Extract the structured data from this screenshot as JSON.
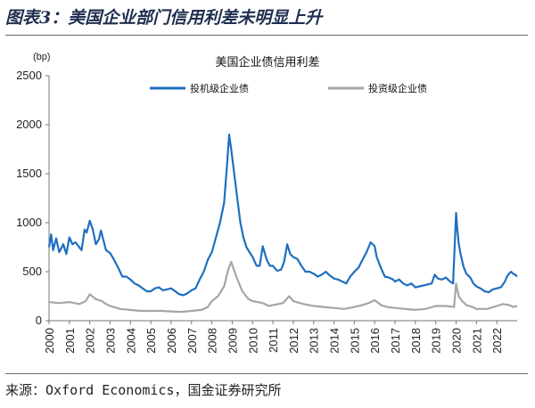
{
  "figure_title": "图表3：美国企业部门信用利差未明显上升",
  "source": "来源：Oxford Economics，国金证券研究所",
  "chart_data": {
    "type": "line",
    "title": "美国企业债信用利差",
    "unit": "(bp)",
    "xlabel": "",
    "ylabel": "",
    "ylim": [
      0,
      2500
    ],
    "yticks": [
      0,
      500,
      1000,
      1500,
      2000,
      2500
    ],
    "xlim": [
      2000,
      2023
    ],
    "xticks": [
      "2000",
      "2001",
      "2002",
      "2003",
      "2004",
      "2005",
      "2006",
      "2007",
      "2008",
      "2009",
      "2010",
      "2011",
      "2012",
      "2013",
      "2014",
      "2015",
      "2016",
      "2017",
      "2018",
      "2019",
      "2020",
      "2021",
      "2022"
    ],
    "grid": false,
    "legend_position": "top",
    "series": [
      {
        "name": "投机级企业债",
        "color": "#1f6fc0",
        "x": [
          2000.0,
          2000.1,
          2000.2,
          2000.35,
          2000.5,
          2000.7,
          2000.85,
          2001.0,
          2001.15,
          2001.3,
          2001.45,
          2001.6,
          2001.75,
          2001.85,
          2002.0,
          2002.15,
          2002.3,
          2002.45,
          2002.55,
          2002.7,
          2002.8,
          2003.0,
          2003.2,
          2003.4,
          2003.6,
          2003.8,
          2004.0,
          2004.2,
          2004.4,
          2004.6,
          2004.8,
          2005.0,
          2005.2,
          2005.4,
          2005.6,
          2005.8,
          2006.0,
          2006.2,
          2006.4,
          2006.6,
          2006.8,
          2007.0,
          2007.2,
          2007.4,
          2007.6,
          2007.8,
          2008.0,
          2008.2,
          2008.4,
          2008.6,
          2008.75,
          2008.85,
          2008.95,
          2009.1,
          2009.25,
          2009.4,
          2009.55,
          2009.7,
          2009.85,
          2010.0,
          2010.2,
          2010.35,
          2010.5,
          2010.7,
          2010.85,
          2011.0,
          2011.2,
          2011.4,
          2011.55,
          2011.7,
          2011.85,
          2012.0,
          2012.2,
          2012.4,
          2012.6,
          2012.8,
          2013.0,
          2013.2,
          2013.4,
          2013.6,
          2013.8,
          2014.0,
          2014.2,
          2014.4,
          2014.6,
          2014.8,
          2015.0,
          2015.2,
          2015.4,
          2015.6,
          2015.8,
          2016.0,
          2016.1,
          2016.3,
          2016.5,
          2016.7,
          2016.9,
          2017.0,
          2017.2,
          2017.4,
          2017.6,
          2017.8,
          2018.0,
          2018.2,
          2018.4,
          2018.6,
          2018.8,
          2018.95,
          2019.1,
          2019.3,
          2019.5,
          2019.7,
          2019.85,
          2020.0,
          2020.05,
          2020.12,
          2020.2,
          2020.35,
          2020.5,
          2020.7,
          2020.85,
          2021.0,
          2021.2,
          2021.4,
          2021.6,
          2021.8,
          2022.0,
          2022.2,
          2022.4,
          2022.5,
          2022.6,
          2022.7,
          2022.8,
          2022.9,
          2023.0
        ],
        "values": [
          750,
          880,
          720,
          840,
          700,
          780,
          680,
          850,
          780,
          800,
          760,
          720,
          930,
          900,
          1020,
          930,
          780,
          830,
          920,
          800,
          720,
          690,
          620,
          540,
          450,
          450,
          420,
          380,
          360,
          330,
          300,
          300,
          330,
          340,
          310,
          320,
          330,
          300,
          270,
          260,
          280,
          310,
          330,
          420,
          500,
          620,
          700,
          850,
          1000,
          1200,
          1600,
          1900,
          1750,
          1500,
          1250,
          1000,
          850,
          750,
          700,
          650,
          560,
          560,
          760,
          620,
          560,
          560,
          510,
          520,
          600,
          780,
          680,
          650,
          630,
          560,
          500,
          500,
          480,
          450,
          470,
          500,
          460,
          430,
          420,
          400,
          380,
          450,
          500,
          540,
          620,
          700,
          800,
          760,
          650,
          540,
          450,
          440,
          420,
          400,
          420,
          380,
          360,
          380,
          340,
          350,
          360,
          370,
          380,
          470,
          430,
          420,
          440,
          400,
          380,
          1100,
          950,
          800,
          700,
          560,
          480,
          440,
          380,
          350,
          330,
          300,
          290,
          320,
          330,
          340,
          400,
          450,
          480,
          500,
          480,
          470,
          450
        ]
      },
      {
        "name": "投资级企业债",
        "color": "#a6a6a6",
        "x": [
          2000.0,
          2000.5,
          2001.0,
          2001.5,
          2001.8,
          2002.0,
          2002.3,
          2002.6,
          2002.8,
          2003.0,
          2003.5,
          2004.0,
          2004.5,
          2005.0,
          2005.5,
          2006.0,
          2006.5,
          2007.0,
          2007.5,
          2007.8,
          2008.0,
          2008.3,
          2008.6,
          2008.8,
          2008.95,
          2009.2,
          2009.5,
          2009.8,
          2010.0,
          2010.5,
          2010.8,
          2011.0,
          2011.5,
          2011.8,
          2012.0,
          2012.5,
          2013.0,
          2013.5,
          2014.0,
          2014.5,
          2015.0,
          2015.4,
          2015.7,
          2016.0,
          2016.3,
          2016.6,
          2017.0,
          2017.5,
          2018.0,
          2018.5,
          2019.0,
          2019.5,
          2019.9,
          2020.0,
          2020.05,
          2020.15,
          2020.3,
          2020.5,
          2020.8,
          2021.0,
          2021.5,
          2022.0,
          2022.3,
          2022.6,
          2022.8,
          2023.0
        ],
        "values": [
          190,
          180,
          190,
          170,
          200,
          270,
          220,
          200,
          170,
          150,
          120,
          110,
          100,
          100,
          100,
          95,
          90,
          100,
          110,
          140,
          200,
          250,
          350,
          520,
          600,
          450,
          300,
          220,
          200,
          180,
          150,
          160,
          180,
          250,
          200,
          170,
          150,
          140,
          130,
          120,
          140,
          160,
          180,
          210,
          160,
          140,
          130,
          120,
          110,
          120,
          150,
          150,
          140,
          380,
          320,
          240,
          200,
          160,
          140,
          120,
          120,
          150,
          170,
          160,
          140,
          150
        ]
      }
    ]
  }
}
